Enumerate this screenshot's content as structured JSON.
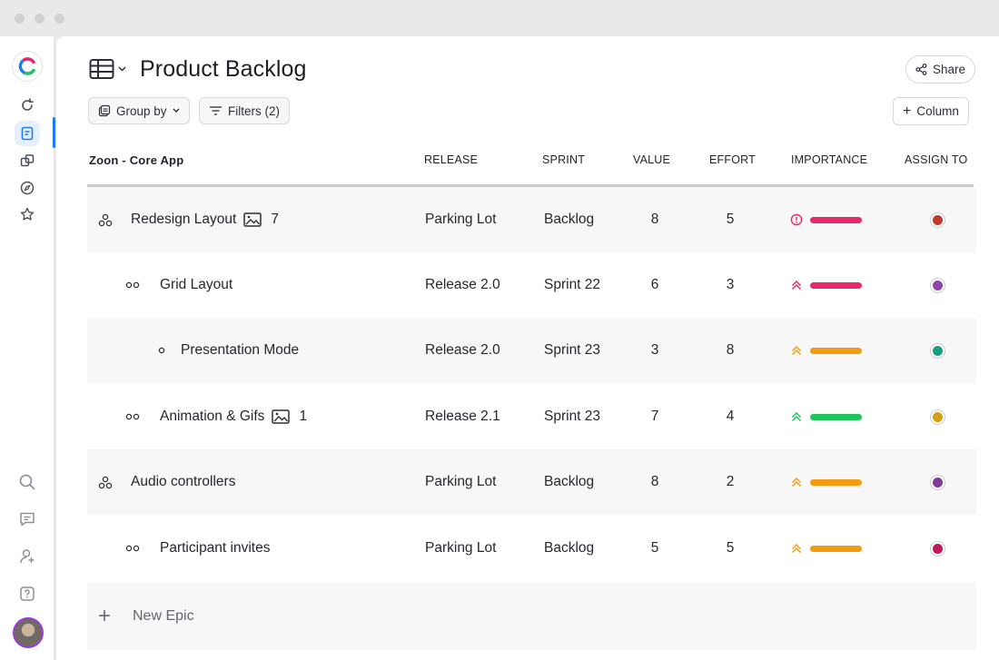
{
  "app": {
    "title": "Product Backlog",
    "share_label": "Share",
    "group_by_label": "Group by",
    "filters_label": "Filters (2)",
    "add_column_label": "Column"
  },
  "rail": {
    "icons": [
      "refresh-icon",
      "document-icon",
      "layers-icon",
      "compass-icon",
      "star-icon",
      "search-icon",
      "message-icon",
      "add-user-icon",
      "help-icon"
    ],
    "active": "document-icon"
  },
  "table": {
    "project_name": "Zoon - Core App",
    "columns": [
      "RELEASE",
      "SPRINT",
      "VALUE",
      "EFFORT",
      "IMPORTANCE",
      "ASSIGN TO"
    ],
    "rows": [
      {
        "name": "Redesign Layout",
        "level": 0,
        "type": "epic",
        "attachments": "7",
        "release": "Parking Lot",
        "sprint": "Backlog",
        "value": "8",
        "effort": "5",
        "importance": "critical",
        "importance_color": "#e8286b",
        "assignee_color": "#c0392b"
      },
      {
        "name": "Grid Layout",
        "level": 1,
        "type": "story",
        "attachments": "",
        "release": "Release 2.0",
        "sprint": "Sprint 22",
        "value": "6",
        "effort": "3",
        "importance": "high",
        "importance_color": "#e8286b",
        "assignee_color": "#8e44ad"
      },
      {
        "name": "Presentation Mode",
        "level": 2,
        "type": "task",
        "attachments": "",
        "release": "Release 2.0",
        "sprint": "Sprint 23",
        "value": "3",
        "effort": "8",
        "importance": "medium",
        "importance_color": "#f39c12",
        "assignee_color": "#16a085"
      },
      {
        "name": "Animation & Gifs",
        "level": 1,
        "type": "story",
        "attachments": "1",
        "release": "Release 2.1",
        "sprint": "Sprint 23",
        "value": "7",
        "effort": "4",
        "importance": "low",
        "importance_color": "#1ec45a",
        "assignee_color": "#d4a017"
      },
      {
        "name": "Audio controllers",
        "level": 0,
        "type": "epic",
        "attachments": "",
        "release": "Parking Lot",
        "sprint": "Backlog",
        "value": "8",
        "effort": "2",
        "importance": "medium",
        "importance_color": "#f39c12",
        "assignee_color": "#7d3c98"
      },
      {
        "name": "Participant invites",
        "level": 1,
        "type": "story",
        "attachments": "",
        "release": "Parking Lot",
        "sprint": "Backlog",
        "value": "5",
        "effort": "5",
        "importance": "medium",
        "importance_color": "#f39c12",
        "assignee_color": "#c2185b"
      }
    ],
    "new_epic_label": "New Epic"
  }
}
